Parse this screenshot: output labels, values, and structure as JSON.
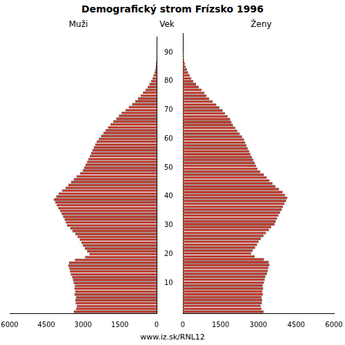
{
  "chart_data": {
    "type": "bar",
    "orientation": "horizontal",
    "title": "Demografický strom Frízsko 1996",
    "ylabel": "Vek",
    "annotations": [
      "www.iz.sk/RNL12"
    ],
    "categories": [
      null,
      null,
      null,
      null,
      null,
      null,
      null,
      null,
      null,
      null,
      "10",
      null,
      null,
      null,
      null,
      null,
      null,
      null,
      null,
      null,
      "20",
      null,
      null,
      null,
      null,
      null,
      null,
      null,
      null,
      null,
      "30",
      null,
      null,
      null,
      null,
      null,
      null,
      null,
      null,
      null,
      "40",
      null,
      null,
      null,
      null,
      null,
      null,
      null,
      null,
      null,
      "50",
      null,
      null,
      null,
      null,
      null,
      null,
      null,
      null,
      null,
      "60",
      null,
      null,
      null,
      null,
      null,
      null,
      null,
      null,
      null,
      "70",
      null,
      null,
      null,
      null,
      null,
      null,
      null,
      null,
      null,
      "80",
      null,
      null,
      null,
      null,
      null,
      null,
      null,
      null,
      null,
      "90",
      null,
      null,
      null,
      null,
      null
    ],
    "series": [
      {
        "name": "Muži",
        "color": "#c0392b",
        "values": [
          3380,
          3290,
          3260,
          3310,
          3320,
          3290,
          3350,
          3330,
          3360,
          3340,
          3390,
          3420,
          3450,
          3510,
          3540,
          3570,
          3610,
          3580,
          3340,
          2920,
          2750,
          2840,
          2930,
          3010,
          3070,
          3140,
          3230,
          3320,
          3440,
          3530,
          3660,
          3710,
          3760,
          3820,
          3880,
          3950,
          4020,
          4080,
          4140,
          4200,
          4100,
          4000,
          3870,
          3720,
          3610,
          3490,
          3380,
          3270,
          3130,
          3020,
          2960,
          2900,
          2840,
          2790,
          2730,
          2680,
          2620,
          2570,
          2510,
          2450,
          2360,
          2270,
          2180,
          2090,
          1990,
          1890,
          1770,
          1650,
          1540,
          1430,
          1280,
          1140,
          1000,
          870,
          760,
          650,
          560,
          460,
          370,
          295,
          225,
          172,
          130,
          92,
          65,
          43,
          27,
          16,
          9,
          5,
          3,
          1,
          1,
          0,
          0,
          0
        ]
      },
      {
        "name": "Ženy",
        "color": "#c0392b",
        "values": [
          3210,
          3120,
          3090,
          3140,
          3150,
          3120,
          3180,
          3160,
          3190,
          3170,
          3220,
          3250,
          3280,
          3340,
          3370,
          3400,
          3440,
          3410,
          3220,
          2850,
          2710,
          2780,
          2870,
          2950,
          3010,
          3100,
          3200,
          3300,
          3420,
          3510,
          3640,
          3690,
          3740,
          3800,
          3860,
          3930,
          3980,
          4040,
          4100,
          4150,
          4060,
          3960,
          3820,
          3680,
          3560,
          3440,
          3330,
          3220,
          3080,
          2970,
          2910,
          2860,
          2800,
          2750,
          2690,
          2640,
          2580,
          2530,
          2480,
          2430,
          2350,
          2260,
          2170,
          2080,
          1990,
          1930,
          1880,
          1780,
          1680,
          1580,
          1450,
          1330,
          1190,
          1050,
          940,
          860,
          750,
          630,
          520,
          420,
          340,
          275,
          210,
          160,
          120,
          85,
          59,
          36,
          22,
          12,
          6,
          3,
          2,
          1,
          0,
          0
        ]
      }
    ],
    "xlim": [
      0,
      6000
    ],
    "xticks": [
      0,
      1500,
      3000,
      4500,
      6000
    ],
    "grid": false
  }
}
